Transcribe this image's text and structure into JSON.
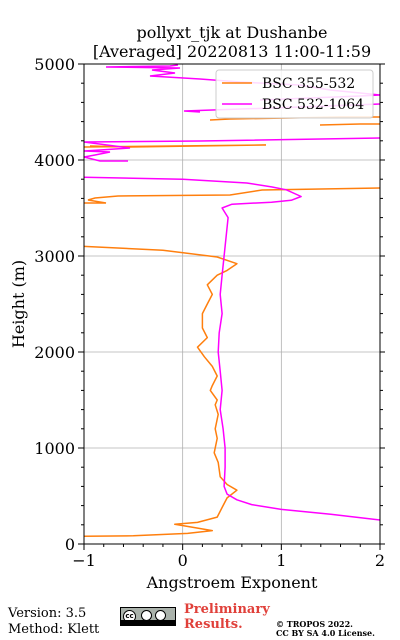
{
  "chart_data": {
    "type": "line",
    "title_line1": "pollyxt_tjk at Dushanbe",
    "title_line2": "[Averaged] 20220813 11:00-11:59",
    "xlabel": "Angstroem Exponent",
    "ylabel": "Height (m)",
    "xlim": [
      -1,
      2
    ],
    "ylim": [
      0,
      5000
    ],
    "xticks": [
      -1,
      0,
      1,
      2
    ],
    "xtick_labels": [
      "−1",
      "0",
      "1",
      "2"
    ],
    "yticks": [
      0,
      1000,
      2000,
      3000,
      4000,
      5000
    ],
    "ytick_labels": [
      "0",
      "1000",
      "2000",
      "3000",
      "4000",
      "5000"
    ],
    "grid": true,
    "legend_position": "top-right",
    "series": [
      {
        "name": "BSC 355-532",
        "color": "#ff7f0e",
        "points": [
          [
            -1.0,
            80
          ],
          [
            -0.5,
            85
          ],
          [
            0.05,
            110
          ],
          [
            0.3,
            140
          ],
          [
            0.1,
            175
          ],
          [
            -0.08,
            205
          ],
          [
            0.15,
            225
          ],
          [
            0.35,
            280
          ],
          [
            0.4,
            380
          ],
          [
            0.45,
            480
          ],
          [
            0.55,
            560
          ],
          [
            0.45,
            620
          ],
          [
            0.38,
            700
          ],
          [
            0.36,
            850
          ],
          [
            0.32,
            950
          ],
          [
            0.35,
            1100
          ],
          [
            0.33,
            1200
          ],
          [
            0.36,
            1350
          ],
          [
            0.33,
            1450
          ],
          [
            0.35,
            1500
          ],
          [
            0.28,
            1600
          ],
          [
            0.3,
            1650
          ],
          [
            0.35,
            1750
          ],
          [
            0.3,
            1850
          ],
          [
            0.22,
            1950
          ],
          [
            0.15,
            2050
          ],
          [
            0.25,
            2150
          ],
          [
            0.2,
            2250
          ],
          [
            0.2,
            2400
          ],
          [
            0.25,
            2500
          ],
          [
            0.3,
            2600
          ],
          [
            0.25,
            2700
          ],
          [
            0.35,
            2800
          ],
          [
            0.45,
            2850
          ],
          [
            0.55,
            2920
          ],
          [
            0.35,
            2990
          ],
          [
            -0.2,
            3060
          ],
          [
            -1.0,
            3100
          ]
        ]
      },
      {
        "name": "BSC 532-1064",
        "color": "#ff00ff",
        "points": [
          [
            2.0,
            250
          ],
          [
            1.5,
            310
          ],
          [
            1.0,
            360
          ],
          [
            0.7,
            410
          ],
          [
            0.55,
            460
          ],
          [
            0.45,
            520
          ],
          [
            0.42,
            600
          ],
          [
            0.43,
            800
          ],
          [
            0.43,
            1000
          ],
          [
            0.41,
            1200
          ],
          [
            0.38,
            1400
          ],
          [
            0.4,
            1600
          ],
          [
            0.38,
            1800
          ],
          [
            0.36,
            2000
          ],
          [
            0.37,
            2200
          ],
          [
            0.4,
            2400
          ],
          [
            0.38,
            2600
          ],
          [
            0.4,
            2800
          ],
          [
            0.42,
            3000
          ],
          [
            0.44,
            3200
          ],
          [
            0.46,
            3400
          ],
          [
            0.4,
            3500
          ],
          [
            0.5,
            3540
          ],
          [
            0.9,
            3560
          ],
          [
            1.1,
            3580
          ],
          [
            1.2,
            3620
          ],
          [
            1.05,
            3690
          ],
          [
            0.9,
            3720
          ],
          [
            0.65,
            3760
          ],
          [
            0.0,
            3800
          ],
          [
            -1.0,
            3820
          ]
        ]
      }
    ]
  },
  "footer": {
    "version": "Version: 3.5",
    "method": "Method: Klett",
    "preliminary_line1": "Preliminary",
    "preliminary_line2": "Results.",
    "copyright_line1": "© TROPOS 2022.",
    "copyright_line2": "CC BY SA 4.0 License.",
    "cc_badge_text": "cc"
  }
}
